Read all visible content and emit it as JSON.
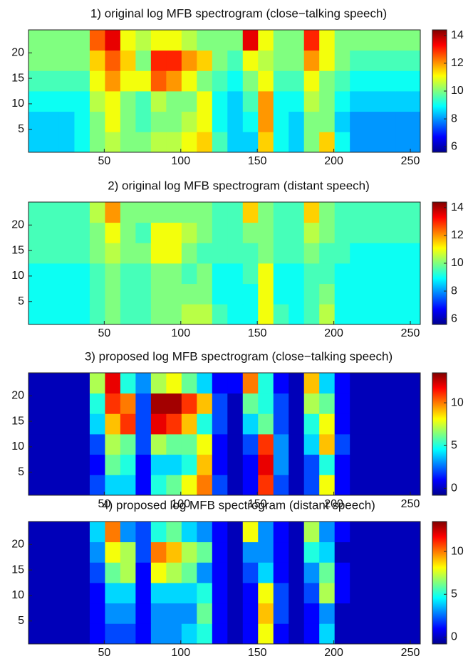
{
  "chart_data": [
    {
      "type": "heatmap",
      "title": "1) original log MFB spectrogram (close−talking speech)",
      "colormap": "jet",
      "xbins": [
        0.5,
        10.5,
        20.5,
        30.5,
        40.5,
        50.5,
        60.5,
        70.5,
        80.5,
        90.5,
        100.5,
        110.5,
        120.5,
        130.5,
        140.5,
        150.5,
        160.5,
        170.5,
        180.5,
        190.5,
        200.5,
        210.5,
        220.5,
        230.5,
        240.5,
        250.5,
        256.5
      ],
      "ybins": [
        0.5,
        4.5,
        8.5,
        12.5,
        16.5,
        20.5,
        24.5
      ],
      "z": [
        [
          8.5,
          8.5,
          8.5,
          9,
          10,
          10.5,
          10,
          10,
          10.5,
          10.5,
          11,
          11.5,
          9.5,
          8.5,
          8.5,
          11.5,
          9,
          8.5,
          10,
          11.5,
          9,
          8,
          8,
          8,
          8,
          8
        ],
        [
          8.5,
          8.5,
          8.5,
          9,
          10,
          11,
          10,
          9.5,
          10,
          10,
          10.5,
          11,
          9,
          8.5,
          9,
          12,
          9,
          8.5,
          10,
          10,
          8.5,
          8,
          8,
          8,
          8,
          8
        ],
        [
          9,
          9,
          9,
          9,
          10.5,
          11,
          10,
          9.5,
          10.5,
          10,
          10,
          11,
          9,
          8.5,
          9.5,
          12,
          9,
          9,
          10.5,
          10,
          9,
          8.5,
          8.5,
          8.5,
          8.5,
          8.5
        ],
        [
          9.5,
          9.5,
          9.5,
          9.5,
          11,
          12,
          11,
          11,
          12.5,
          12,
          11,
          10,
          9.5,
          9,
          10,
          11,
          9.5,
          9.5,
          11,
          10,
          9.5,
          9,
          9,
          9,
          9,
          9
        ],
        [
          10,
          10,
          10,
          10,
          11.5,
          12.5,
          11.5,
          10,
          13,
          13,
          12,
          11.5,
          10,
          9.5,
          11,
          10.5,
          10,
          10,
          12,
          11,
          10,
          9.5,
          9.5,
          9.5,
          9.5,
          9.5
        ],
        [
          10,
          10,
          10,
          10,
          12.5,
          13.5,
          11,
          10.5,
          11,
          11,
          10.5,
          10,
          10,
          10,
          13.5,
          11,
          10,
          10,
          13,
          11,
          10,
          10,
          10,
          10,
          10,
          10
        ]
      ],
      "xlim": [
        0.5,
        256.5
      ],
      "xticks": [
        50,
        100,
        150,
        200,
        250
      ],
      "ylim": [
        0.5,
        24.5
      ],
      "yticks": [
        5,
        10,
        15,
        20
      ],
      "clim": [
        5.6,
        14.4
      ],
      "cticks": [
        6,
        8,
        10,
        12,
        14
      ]
    },
    {
      "type": "heatmap",
      "title": "2) original log MFB spectrogram (distant speech)",
      "colormap": "jet",
      "xbins": [
        0.5,
        10.5,
        20.5,
        30.5,
        40.5,
        50.5,
        60.5,
        70.5,
        80.5,
        90.5,
        100.5,
        110.5,
        120.5,
        130.5,
        140.5,
        150.5,
        160.5,
        170.5,
        180.5,
        190.5,
        200.5,
        210.5,
        220.5,
        230.5,
        240.5,
        250.5,
        256.5
      ],
      "ybins": [
        0.5,
        4.5,
        8.5,
        12.5,
        16.5,
        20.5,
        24.5
      ],
      "z": [
        [
          9,
          9,
          9,
          9,
          9.5,
          10,
          9.5,
          9.5,
          10,
          10,
          10.5,
          10.5,
          9.5,
          9,
          9,
          11,
          9.5,
          9,
          9.5,
          10.5,
          9,
          9,
          9,
          9,
          9,
          9
        ],
        [
          9,
          9,
          9,
          9,
          9.5,
          10,
          9.5,
          9.5,
          10,
          10,
          10,
          10,
          9,
          9,
          9,
          11,
          9,
          9,
          9.5,
          10,
          9,
          9,
          9,
          9,
          9,
          9
        ],
        [
          9,
          9,
          9,
          9,
          9.5,
          10,
          9.5,
          9.5,
          10,
          10,
          9.5,
          10,
          9,
          9,
          9.5,
          11,
          9,
          9,
          9.5,
          9.5,
          9,
          9,
          9,
          9,
          9,
          9
        ],
        [
          9.5,
          9.5,
          9.5,
          9.5,
          10,
          10.5,
          10,
          10,
          11,
          11,
          10,
          9.5,
          9.5,
          9.5,
          9.5,
          10,
          9.5,
          9.5,
          10,
          9.5,
          9.5,
          9,
          9,
          9,
          9,
          9
        ],
        [
          9.5,
          9.5,
          9.5,
          9.5,
          10,
          11,
          10,
          9.5,
          11,
          11,
          10.5,
          10,
          9.5,
          9.5,
          10,
          10,
          9.5,
          9.5,
          10.5,
          10,
          9.5,
          9.5,
          9.5,
          9.5,
          9.5,
          9.5
        ],
        [
          9.5,
          9.5,
          9.5,
          9.5,
          10.5,
          12,
          10,
          10,
          10,
          10,
          10,
          10,
          9.5,
          9.5,
          11.5,
          10,
          9.5,
          9.5,
          11.5,
          10,
          9.5,
          9.5,
          9.5,
          9.5,
          9.5,
          9.5
        ]
      ],
      "xlim": [
        0.5,
        256.5
      ],
      "xticks": [
        50,
        100,
        150,
        200,
        250
      ],
      "ylim": [
        0.5,
        24.5
      ],
      "yticks": [
        5,
        10,
        15,
        20
      ],
      "clim": [
        5.6,
        14.4
      ],
      "cticks": [
        6,
        8,
        10,
        12,
        14
      ]
    },
    {
      "type": "heatmap",
      "title": "3) proposed log MFB spectrogram (close−talking speech)",
      "colormap": "jet",
      "xbins": [
        0.5,
        10.5,
        20.5,
        30.5,
        40.5,
        50.5,
        60.5,
        70.5,
        80.5,
        90.5,
        100.5,
        110.5,
        120.5,
        130.5,
        140.5,
        150.5,
        160.5,
        170.5,
        180.5,
        190.5,
        200.5,
        210.5,
        220.5,
        230.5,
        240.5,
        250.5,
        256.5
      ],
      "ybins": [
        0.5,
        4.5,
        8.5,
        12.5,
        16.5,
        20.5,
        24.5
      ],
      "z": [
        [
          0,
          0,
          0,
          0,
          2,
          4,
          4,
          1,
          5,
          6,
          8,
          10,
          2,
          0,
          1,
          11,
          2,
          0,
          2,
          8,
          1,
          0,
          0,
          0,
          0,
          0
        ],
        [
          0,
          0,
          0,
          0,
          1,
          6,
          5,
          1,
          4,
          4,
          5,
          9,
          1,
          0,
          1,
          12,
          3,
          0,
          2,
          5,
          1,
          0,
          0,
          0,
          0,
          0
        ],
        [
          0,
          0,
          0,
          0,
          2,
          7,
          6,
          2,
          7,
          6,
          6,
          8,
          1,
          0,
          2,
          11,
          3,
          0,
          4,
          9,
          2,
          0,
          0,
          0,
          0,
          0
        ],
        [
          0,
          0,
          0,
          0,
          4,
          9,
          11,
          2,
          12,
          11,
          9,
          5,
          2,
          0,
          4,
          6,
          2,
          0,
          5,
          8,
          1,
          0,
          0,
          0,
          0,
          0
        ],
        [
          0,
          0,
          0,
          0,
          5,
          11,
          10,
          2,
          13,
          13,
          11,
          9,
          2,
          0,
          6,
          5,
          2,
          0,
          7,
          6,
          1,
          0,
          0,
          0,
          0,
          0
        ],
        [
          0,
          0,
          0,
          0,
          7,
          12,
          5,
          3,
          7,
          8,
          6,
          4,
          1,
          1,
          10,
          5,
          1,
          0,
          9,
          4,
          1,
          0,
          0,
          0,
          0,
          0
        ]
      ],
      "xlim": [
        0.5,
        256.5
      ],
      "xticks": [
        50,
        100,
        150,
        200,
        250
      ],
      "ylim": [
        0.5,
        24.5
      ],
      "yticks": [
        5,
        10,
        15,
        20
      ],
      "clim": [
        -0.8,
        13.5
      ],
      "cticks": [
        0,
        5,
        10
      ]
    },
    {
      "type": "heatmap",
      "title": "4) proposed log MFB spectrogram (distant speech)",
      "colormap": "jet",
      "xbins": [
        0.5,
        10.5,
        20.5,
        30.5,
        40.5,
        50.5,
        60.5,
        70.5,
        80.5,
        90.5,
        100.5,
        110.5,
        120.5,
        130.5,
        140.5,
        150.5,
        160.5,
        170.5,
        180.5,
        190.5,
        200.5,
        210.5,
        220.5,
        230.5,
        240.5,
        250.5,
        256.5
      ],
      "ybins": [
        0.5,
        4.5,
        8.5,
        12.5,
        16.5,
        20.5,
        24.5
      ],
      "z": [
        [
          0,
          0,
          0,
          0,
          1,
          2,
          2,
          1,
          3,
          3,
          4,
          5,
          1,
          0,
          1,
          8,
          1,
          0,
          1,
          4,
          0,
          0,
          0,
          0,
          0,
          0
        ],
        [
          0,
          0,
          0,
          0,
          1,
          3,
          3,
          1,
          3,
          3,
          3,
          6,
          1,
          0,
          1,
          9,
          2,
          0,
          1,
          3,
          0,
          0,
          0,
          0,
          0,
          0
        ],
        [
          0,
          0,
          0,
          0,
          1,
          4,
          4,
          1,
          4,
          4,
          4,
          5,
          1,
          0,
          1,
          8,
          2,
          0,
          2,
          7,
          1,
          0,
          0,
          0,
          0,
          0
        ],
        [
          0,
          0,
          0,
          0,
          2,
          6,
          7,
          1,
          8,
          7,
          6,
          3,
          1,
          0,
          2,
          4,
          1,
          0,
          3,
          6,
          1,
          0,
          0,
          0,
          0,
          0
        ],
        [
          0,
          0,
          0,
          0,
          3,
          8,
          7,
          2,
          10,
          9,
          7,
          6,
          1,
          0,
          3,
          3,
          1,
          0,
          5,
          4,
          0,
          0,
          0,
          0,
          0,
          0
        ],
        [
          0,
          0,
          0,
          0,
          4,
          10,
          3,
          2,
          5,
          6,
          4,
          3,
          1,
          0,
          8,
          3,
          1,
          0,
          7,
          3,
          1,
          0,
          0,
          0,
          0,
          0
        ]
      ],
      "xlim": [
        0.5,
        256.5
      ],
      "xticks": [
        50,
        100,
        150,
        200,
        250
      ],
      "ylim": [
        0.5,
        24.5
      ],
      "yticks": [
        5,
        10,
        15,
        20
      ],
      "clim": [
        -0.8,
        13.5
      ],
      "cticks": [
        0,
        5,
        10
      ]
    }
  ]
}
